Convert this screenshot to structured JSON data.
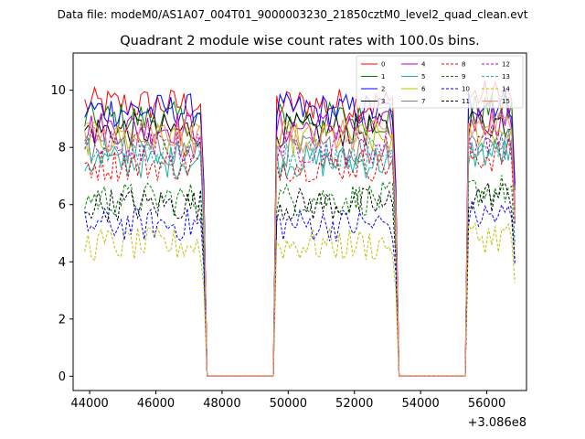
{
  "chart_data": {
    "type": "line",
    "suptitle": "Data file: modeM0/AS1A07_004T01_9000003230_21850cztM0_level2_quad_clean.evt",
    "title": "Quadrant 2 module wise count rates with 100.0s bins.",
    "xlabel": "",
    "ylabel": "",
    "x_offset_label": "+3.086e8",
    "xlim": [
      43500,
      57200
    ],
    "ylim": [
      -0.5,
      11.3
    ],
    "xticks": [
      44000,
      46000,
      48000,
      50000,
      52000,
      54000,
      56000
    ],
    "yticks": [
      0,
      2,
      4,
      6,
      8,
      10
    ],
    "bin_width": 100,
    "segments": [
      [
        43850,
        47450
      ],
      [
        49650,
        53250
      ],
      [
        55450,
        56850
      ]
    ],
    "gap_value": 0,
    "legend_position": "top-right",
    "series": [
      {
        "name": "0",
        "color": "#ff0000",
        "style": "solid",
        "level": 9.5
      },
      {
        "name": "1",
        "color": "#008000",
        "style": "solid",
        "level": 9.0
      },
      {
        "name": "2",
        "color": "#0000ff",
        "style": "solid",
        "level": 9.3
      },
      {
        "name": "3",
        "color": "#000000",
        "style": "solid",
        "level": 8.6
      },
      {
        "name": "4",
        "color": "#bf00bf",
        "style": "solid",
        "level": 8.7
      },
      {
        "name": "5",
        "color": "#17b3a6",
        "style": "solid",
        "level": 7.5
      },
      {
        "name": "6",
        "color": "#bfbf00",
        "style": "solid",
        "level": 8.3
      },
      {
        "name": "7",
        "color": "#808080",
        "style": "solid",
        "level": 7.9
      },
      {
        "name": "8",
        "color": "#ff0000",
        "style": "dashed",
        "level": 7.4
      },
      {
        "name": "9",
        "color": "#008000",
        "style": "dashed",
        "level": 6.2
      },
      {
        "name": "10",
        "color": "#0000ff",
        "style": "dashed",
        "level": 5.3
      },
      {
        "name": "11",
        "color": "#000000",
        "style": "dashed",
        "level": 6.0
      },
      {
        "name": "12",
        "color": "#bf00bf",
        "style": "dashed",
        "level": 8.0
      },
      {
        "name": "13",
        "color": "#17b3a6",
        "style": "dashed",
        "level": 7.8
      },
      {
        "name": "14",
        "color": "#bfbf00",
        "style": "dashed",
        "level": 4.6
      },
      {
        "name": "15",
        "color": "#ff8c69",
        "style": "solid",
        "level": 8.4
      }
    ]
  }
}
